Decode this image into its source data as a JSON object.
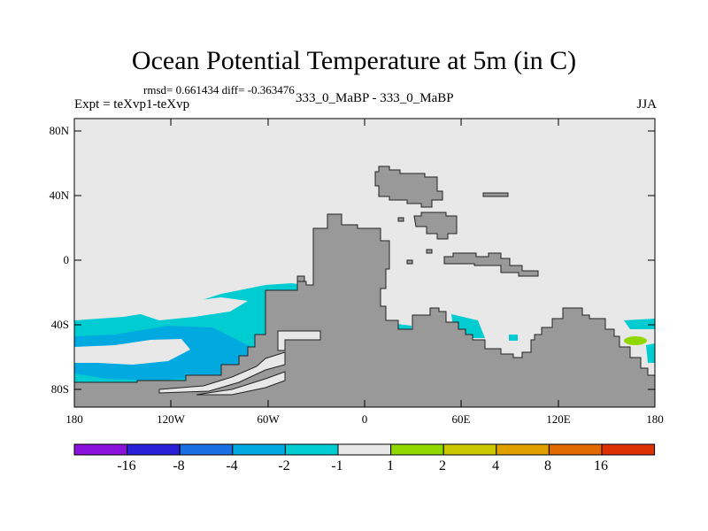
{
  "header": {
    "title": "Ocean Potential Temperature at 5m (in C)",
    "stats": "rmsd= 0.661434  diff= -0.363476",
    "experiment": "Expt = teXvp1-teXvp",
    "subtitle": "333_0_MaBP - 333_0_MaBP",
    "season": "JJA"
  },
  "axes": {
    "lat_ticks": [
      "80N",
      "40N",
      "0",
      "40S",
      "80S"
    ],
    "lon_ticks": [
      "180",
      "120W",
      "60W",
      "0",
      "60E",
      "120E",
      "180"
    ]
  },
  "colors": {
    "ocean_neutral": "#e8e8e8",
    "land": "#999999",
    "anomaly_minus1_minus2": "#00ccd2",
    "anomaly_minus2_minus4": "#00aae0",
    "anomaly_1_2": "#90d800"
  },
  "colorbar": {
    "colors": [
      "#8a12dc",
      "#2a20d8",
      "#1a6ee2",
      "#00aae0",
      "#00ccd2",
      "#e8e8e8",
      "#90d800",
      "#ccc800",
      "#e0a000",
      "#e06a00",
      "#dc3000"
    ],
    "labels": [
      "-16",
      "-8",
      "-4",
      "-2",
      "-1",
      "1",
      "2",
      "4",
      "8",
      "16"
    ]
  }
}
